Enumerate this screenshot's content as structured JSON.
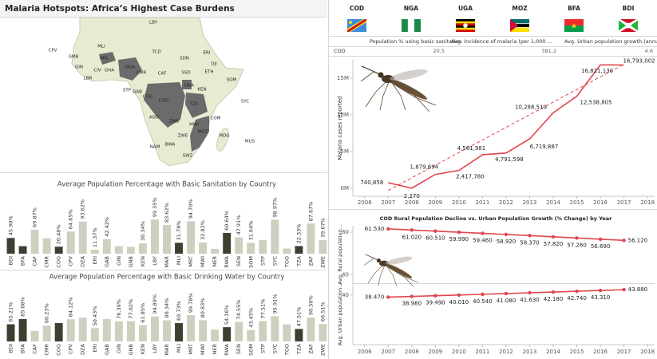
{
  "title": "Malaria Hotspots: Africa’s Highest Case Burdens",
  "map": {
    "labels": [
      "LBY",
      "MLI",
      "TCD",
      "SDN",
      "ERI",
      "DJI",
      "ETH",
      "SOM",
      "SSD",
      "UGA",
      "KEN",
      "CAF",
      "CMR",
      "NGA",
      "BFA",
      "GMB",
      "GIN",
      "LBR",
      "CIV",
      "GHA",
      "CPV",
      "STP",
      "GAB",
      "COG",
      "COD",
      "TZA",
      "AGO",
      "ZMB",
      "MWI",
      "MOZ",
      "ZWE",
      "NAM",
      "BWA",
      "SWZ",
      "MDG",
      "COM",
      "SYC",
      "MUS"
    ]
  },
  "country_table": {
    "countries": [
      "COD",
      "NGA",
      "UGA",
      "MOZ",
      "BFA",
      "BDI"
    ],
    "columns": [
      "Population % using basic sanitation",
      "Avg. Incidence of malaria (per 1,000 ...",
      "Avg. Urban population growth (annu..."
    ],
    "row_label": "COD",
    "row": [
      20.5,
      381.2,
      4.6
    ]
  },
  "chart_data": [
    {
      "type": "line",
      "ylabel": "Malaria cases reported",
      "x": [
        2007,
        2008,
        2009,
        2010,
        2011,
        2012,
        2013,
        2014,
        2015,
        2016,
        2017
      ],
      "values": [
        740858,
        2270,
        1879694,
        2417780,
        4561981,
        4791598,
        6719887,
        10288519,
        12538805,
        16821130,
        16793002
      ],
      "value_labels": [
        "740,858",
        "2,270",
        "1,879,694",
        "2,417,780",
        "4,561,981",
        "4,791,598",
        "6,719,887",
        "10,288,519",
        "12,538,805",
        "16,821,130",
        "16,793,002"
      ],
      "color": "#e0464e",
      "trend": {
        "x": [
          2007,
          2017
        ],
        "values": [
          -300000,
          16900000
        ]
      },
      "xlim": [
        2005.5,
        2018.3
      ],
      "xticks": [
        2006,
        2007,
        2008,
        2009,
        2010,
        2011,
        2012,
        2013,
        2014,
        2015,
        2016,
        2017,
        2018
      ],
      "ylim": [
        -1100000,
        17500000
      ],
      "yticks": [
        {
          "value": 0,
          "label": "0M"
        },
        {
          "value": 5000000,
          "label": "5M"
        },
        {
          "value": 10000000,
          "label": "10M"
        },
        {
          "value": 15000000,
          "label": "15M"
        }
      ]
    },
    {
      "type": "line",
      "title": "COD Rural Population Decline vs. Urban Population Growth (% Change) by Year",
      "x": [
        2007,
        2008,
        2009,
        2010,
        2011,
        2012,
        2013,
        2014,
        2015,
        2016,
        2017
      ],
      "series": [
        {
          "name": "Avg. Rural population...",
          "color": "#e0464e",
          "values": [
            61.53,
            61.02,
            60.51,
            59.99,
            59.46,
            58.92,
            58.37,
            57.82,
            57.26,
            56.69,
            56.12
          ],
          "value_labels": [
            "61.530",
            "61.020",
            "60.510",
            "59.990",
            "59.460",
            "58.920",
            "58.370",
            "57.820",
            "57.260",
            "56.690",
            "56.120"
          ]
        },
        {
          "name": "Avg. Urban population...",
          "color": "#e0464e",
          "axis": "y2",
          "values": [
            38.47,
            38.98,
            39.49,
            40.01,
            40.54,
            41.08,
            41.63,
            42.18,
            42.74,
            43.31,
            43.88
          ],
          "value_labels": [
            "38.470",
            "38.980",
            "39.490",
            "40.010",
            "40.540",
            "41.080",
            "41.630",
            "42.180",
            "42.740",
            "43.310",
            "43.880"
          ]
        }
      ],
      "markers": true,
      "xlim": [
        2005.5,
        2018.3
      ],
      "xticks": [
        2006,
        2007,
        2008,
        2009,
        2010,
        2011,
        2012,
        2013,
        2014,
        2015,
        2016,
        2017,
        2018
      ],
      "ylim": [
        36,
        63
      ],
      "yticks": [
        40,
        60
      ],
      "y2lim": [
        4,
        48
      ],
      "y2ticks": [
        40
      ]
    },
    {
      "type": "bar",
      "title": "Average Population Percentage with Basic Sanitation by Country",
      "categories": [
        "BDI",
        "BFA",
        "CAF",
        "CMR",
        "COG",
        "CPV",
        "DZA",
        "ERI",
        "GAB",
        "GIN",
        "GNB",
        "KEN",
        "LBY",
        "MAR",
        "MLI",
        "MRT",
        "MWI",
        "NER",
        "RWA",
        "SEN",
        "SOM",
        "STP",
        "SYC",
        "TGO",
        "TZA",
        "ZAF",
        "ZWE"
      ],
      "values": [
        45.9,
        22,
        69.87,
        45,
        20.48,
        64.65,
        93.62,
        11.37,
        42.42,
        22,
        20,
        30.34,
        99.35,
        83.62,
        31.78,
        94.7,
        32.82,
        14,
        60.64,
        47.91,
        31.64,
        40,
        98.97,
        15,
        22.33,
        87.67,
        39.67
      ],
      "value_labels": [
        "45.90%",
        null,
        "69.87%",
        null,
        "20.48%",
        "64.65%",
        "93.62%",
        "11.37%",
        "42.42%",
        null,
        null,
        "30.34%",
        "99.35%",
        "83.62%",
        "31.78%",
        "94.70%",
        "32.82%",
        null,
        "60.64%",
        "47.91%",
        "31.64%",
        null,
        "98.97%",
        null,
        "22.33%",
        "87.67%",
        "39.67%"
      ],
      "colors": [
        "#3c4030",
        "#3c4030",
        "#cfcfbf",
        "#cfcfbf",
        "#3c4030",
        "#cfcfbf",
        "#cfcfbf",
        "#cfcfbf",
        "#cfcfbf",
        "#cfcfbf",
        "#cfcfbf",
        "#cfcfbf",
        "#cfcfbf",
        "#cfcfbf",
        "#3c4030",
        "#cfcfbf",
        "#cfcfbf",
        "#cfcfbf",
        "#3c4030",
        "#cfcfbf",
        "#cfcfbf",
        "#cfcfbf",
        "#cfcfbf",
        "#cfcfbf",
        "#3c4030",
        "#cfcfbf",
        "#cfcfbf"
      ],
      "ylim": [
        0,
        100
      ]
    },
    {
      "type": "bar",
      "title": "Average Population Percentage with Basic Drinking Water by Country",
      "categories": [
        "BDI",
        "BFA",
        "CAF",
        "CMR",
        "COG",
        "CPV",
        "DZA",
        "ERI",
        "GAB",
        "GIN",
        "GNB",
        "KEN",
        "LBY",
        "MAR",
        "MLI",
        "MRT",
        "MWI",
        "NER",
        "RWA",
        "SEN",
        "SOM",
        "STP",
        "SYC",
        "TGO",
        "TZA",
        "ZAF",
        "ZWE"
      ],
      "values": [
        65.21,
        85.08,
        40,
        60.23,
        70,
        84.12,
        90,
        50.43,
        85,
        76.39,
        77.02,
        61.85,
        94.89,
        80.34,
        69.73,
        99.78,
        80.83,
        45,
        54.16,
        74.55,
        43.45,
        77.51,
        95.91,
        65,
        47.51,
        90.5,
        66.51
      ],
      "value_labels": [
        "65.21%",
        "85.08%",
        null,
        "60.23%",
        null,
        "84.12%",
        null,
        "50.43%",
        null,
        "76.39%",
        "77.02%",
        "61.85%",
        "94.89%",
        "80.34%",
        "69.73%",
        "99.78%",
        "80.83%",
        null,
        "54.16%",
        "74.55%",
        "43.45%",
        "77.51%",
        "95.91%",
        null,
        "47.51%",
        "90.50%",
        "66.51%"
      ],
      "colors": [
        "#3c4030",
        "#3c4030",
        "#cfcfbf",
        "#cfcfbf",
        "#3c4030",
        "#cfcfbf",
        "#cfcfbf",
        "#cfcfbf",
        "#cfcfbf",
        "#cfcfbf",
        "#cfcfbf",
        "#cfcfbf",
        "#cfcfbf",
        "#cfcfbf",
        "#3c4030",
        "#cfcfbf",
        "#cfcfbf",
        "#cfcfbf",
        "#3c4030",
        "#cfcfbf",
        "#cfcfbf",
        "#cfcfbf",
        "#cfcfbf",
        "#cfcfbf",
        "#3c4030",
        "#cfcfbf",
        "#cfcfbf"
      ],
      "ylim": [
        0,
        100
      ]
    }
  ]
}
